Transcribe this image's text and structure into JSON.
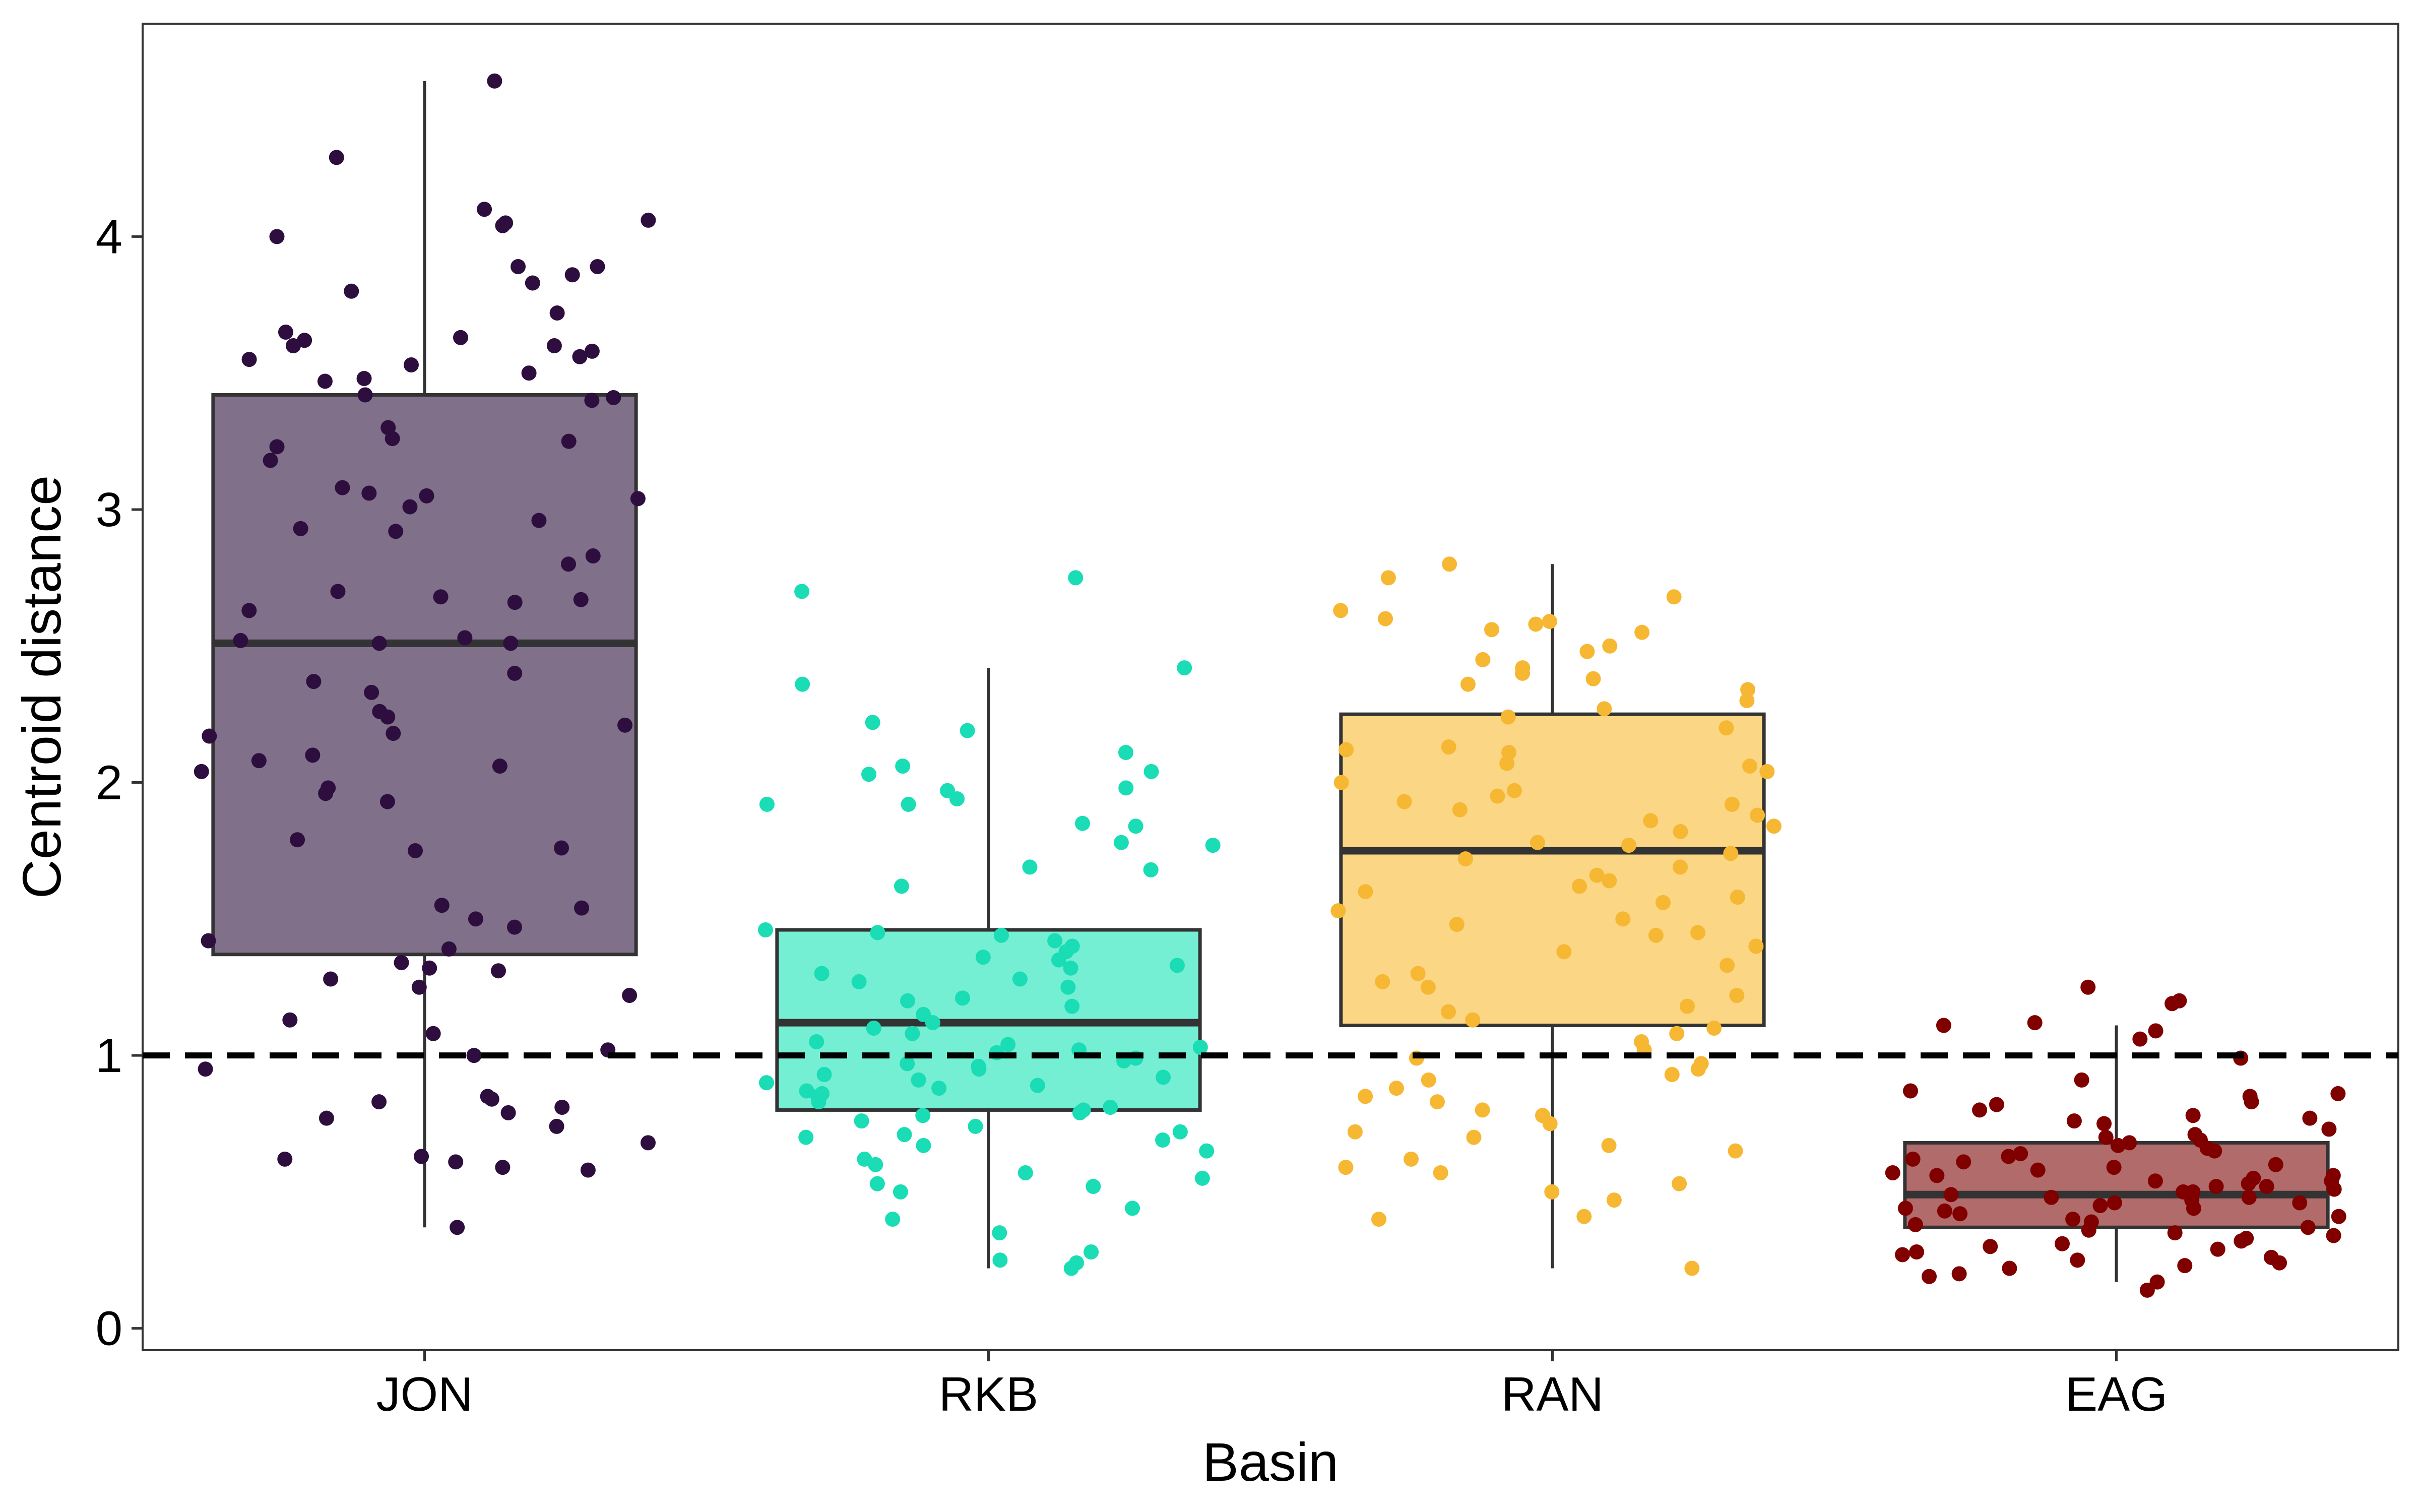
{
  "chart_data": {
    "type": "box",
    "title": "",
    "xlabel": "Basin",
    "ylabel": "Centroid distance",
    "ylim": [
      -0.08,
      4.78
    ],
    "yticks": [
      0,
      1,
      2,
      3,
      4
    ],
    "reference_line": {
      "y": 1,
      "style": "dashed",
      "color": "#000000"
    },
    "legend": "none",
    "grid": false,
    "categories": [
      "JON",
      "RKB",
      "RAN",
      "EAG"
    ],
    "boxes": [
      {
        "category": "JON",
        "q1": 1.37,
        "median": 2.51,
        "q3": 3.42,
        "whisker_low": 0.37,
        "whisker_high": 4.57,
        "fill": "#80708A",
        "point_color": "#2E0E3E"
      },
      {
        "category": "RKB",
        "q1": 0.8,
        "median": 1.12,
        "q3": 1.46,
        "whisker_low": 0.22,
        "whisker_high": 2.42,
        "fill": "#74EFD3",
        "point_color": "#1ADCB5"
      },
      {
        "category": "RAN",
        "q1": 1.11,
        "median": 1.75,
        "q3": 2.25,
        "whisker_low": 0.22,
        "whisker_high": 2.8,
        "fill": "#FBD685",
        "point_color": "#F6B733"
      },
      {
        "category": "EAG",
        "q1": 0.37,
        "median": 0.49,
        "q3": 0.68,
        "whisker_low": 0.17,
        "whisker_high": 1.11,
        "fill": "#B26B6B",
        "point_color": "#800000"
      }
    ],
    "points": [
      [
        4.57,
        4.29,
        4.1,
        4.06,
        4.05,
        4.04,
        4.0,
        3.89,
        3.89,
        3.86,
        3.83,
        3.8,
        3.72,
        3.65,
        3.63,
        3.62,
        3.6,
        3.6,
        3.58,
        3.56,
        3.55,
        3.53,
        3.5,
        3.48,
        3.47,
        3.42,
        3.41,
        3.4,
        3.3,
        3.26,
        3.25,
        3.23,
        3.18,
        3.08,
        3.06,
        3.05,
        3.04,
        3.01,
        2.96,
        2.93,
        2.92,
        2.83,
        2.8,
        2.7,
        2.68,
        2.67,
        2.66,
        2.63,
        2.53,
        2.52,
        2.51,
        2.51,
        2.4,
        2.37,
        2.33,
        2.26,
        2.24,
        2.21,
        2.18,
        2.17,
        2.1,
        2.08,
        2.06,
        2.04,
        1.98,
        1.96,
        1.93,
        1.79,
        1.76,
        1.75,
        1.55,
        1.54,
        1.5,
        1.47,
        1.42,
        1.39,
        1.34,
        1.32,
        1.31,
        1.28,
        1.25,
        1.22,
        1.13,
        1.08,
        1.02,
        1.0,
        0.95,
        0.85,
        0.84,
        0.83,
        0.81,
        0.79,
        0.77,
        0.74,
        0.68,
        0.63,
        0.62,
        0.61,
        0.59,
        0.58,
        0.37
      ],
      [
        2.75,
        2.7,
        2.42,
        2.36,
        2.22,
        2.19,
        2.11,
        2.06,
        2.04,
        2.03,
        1.98,
        1.97,
        1.94,
        1.92,
        1.92,
        1.85,
        1.84,
        1.78,
        1.77,
        1.69,
        1.68,
        1.62,
        1.46,
        1.45,
        1.44,
        1.42,
        1.4,
        1.38,
        1.36,
        1.35,
        1.33,
        1.32,
        1.3,
        1.28,
        1.27,
        1.25,
        1.21,
        1.2,
        1.18,
        1.15,
        1.12,
        1.1,
        1.08,
        1.05,
        1.04,
        1.03,
        1.02,
        1.01,
        0.99,
        0.98,
        0.97,
        0.96,
        0.95,
        0.93,
        0.92,
        0.91,
        0.9,
        0.89,
        0.88,
        0.87,
        0.86,
        0.85,
        0.83,
        0.81,
        0.8,
        0.79,
        0.78,
        0.76,
        0.74,
        0.72,
        0.71,
        0.7,
        0.69,
        0.67,
        0.65,
        0.62,
        0.6,
        0.57,
        0.55,
        0.53,
        0.52,
        0.5,
        0.44,
        0.4,
        0.35,
        0.28,
        0.25,
        0.24,
        0.22
      ],
      [
        2.8,
        2.75,
        2.68,
        2.63,
        2.6,
        2.59,
        2.58,
        2.56,
        2.55,
        2.5,
        2.48,
        2.45,
        2.42,
        2.4,
        2.38,
        2.36,
        2.34,
        2.3,
        2.27,
        2.24,
        2.2,
        2.13,
        2.12,
        2.11,
        2.07,
        2.06,
        2.04,
        2.0,
        1.97,
        1.95,
        1.93,
        1.92,
        1.9,
        1.88,
        1.86,
        1.84,
        1.82,
        1.78,
        1.77,
        1.74,
        1.72,
        1.69,
        1.66,
        1.64,
        1.62,
        1.6,
        1.58,
        1.56,
        1.53,
        1.5,
        1.48,
        1.45,
        1.44,
        1.4,
        1.38,
        1.33,
        1.3,
        1.27,
        1.25,
        1.22,
        1.18,
        1.16,
        1.13,
        1.1,
        1.08,
        1.05,
        1.02,
        0.99,
        0.97,
        0.95,
        0.93,
        0.91,
        0.88,
        0.85,
        0.83,
        0.8,
        0.78,
        0.75,
        0.72,
        0.7,
        0.67,
        0.65,
        0.62,
        0.59,
        0.57,
        0.53,
        0.5,
        0.47,
        0.41,
        0.4,
        0.22
      ],
      [
        1.25,
        1.2,
        1.19,
        1.12,
        1.11,
        1.09,
        1.06,
        0.99,
        0.91,
        0.87,
        0.86,
        0.85,
        0.83,
        0.82,
        0.8,
        0.78,
        0.77,
        0.76,
        0.75,
        0.73,
        0.71,
        0.7,
        0.69,
        0.68,
        0.67,
        0.66,
        0.65,
        0.64,
        0.63,
        0.62,
        0.61,
        0.6,
        0.59,
        0.58,
        0.57,
        0.56,
        0.56,
        0.55,
        0.54,
        0.54,
        0.53,
        0.52,
        0.52,
        0.51,
        0.5,
        0.5,
        0.49,
        0.48,
        0.48,
        0.47,
        0.46,
        0.46,
        0.45,
        0.44,
        0.44,
        0.43,
        0.42,
        0.41,
        0.4,
        0.39,
        0.38,
        0.37,
        0.36,
        0.35,
        0.34,
        0.33,
        0.32,
        0.31,
        0.3,
        0.29,
        0.28,
        0.27,
        0.26,
        0.25,
        0.24,
        0.23,
        0.22,
        0.2,
        0.19,
        0.17,
        0.14
      ]
    ]
  }
}
